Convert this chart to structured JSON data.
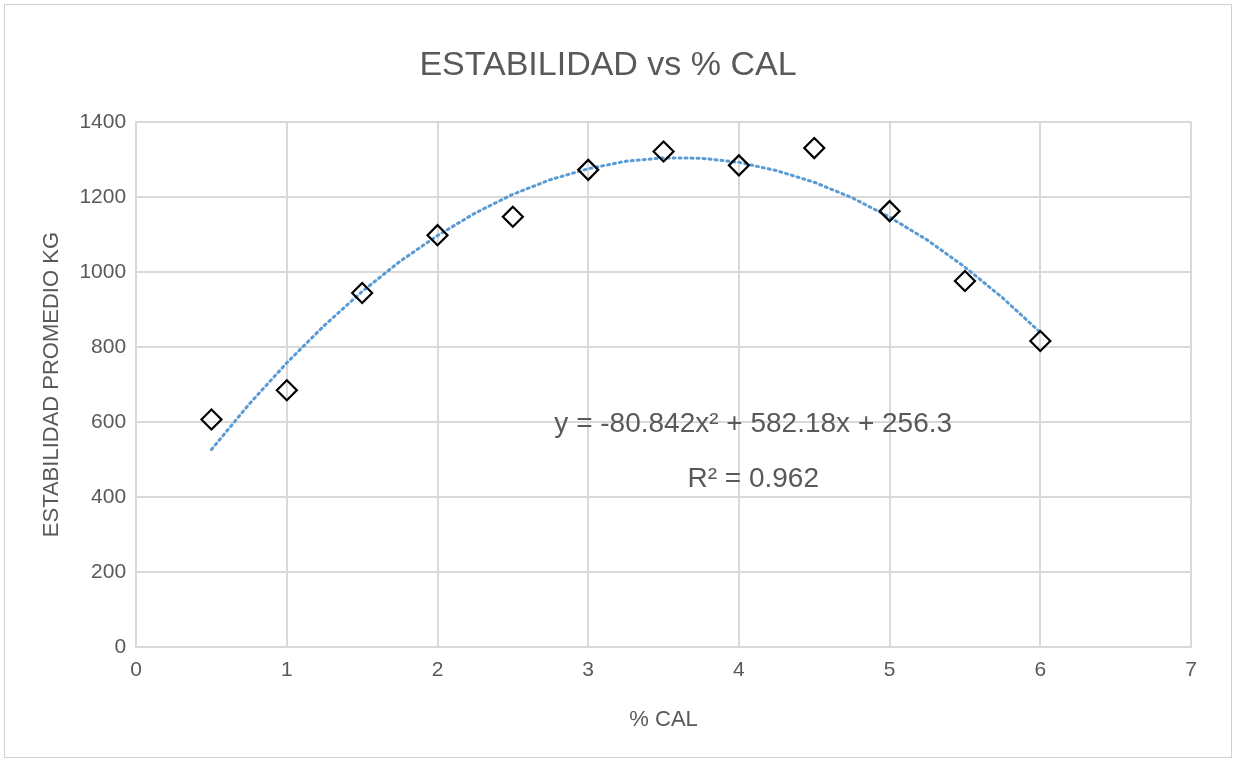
{
  "chart_data": {
    "type": "scatter",
    "title": "ESTABILIDAD vs % CAL",
    "xlabel": "% CAL",
    "ylabel": "ESTABILIDAD PROMEDIO KG",
    "xlim": [
      0,
      7
    ],
    "xticks": [
      0,
      1,
      2,
      3,
      4,
      5,
      6,
      7
    ],
    "ylim": [
      0,
      1400
    ],
    "yticks": [
      0,
      200,
      400,
      600,
      800,
      1000,
      1200,
      1400
    ],
    "grid": true,
    "legend": false,
    "annotations": [
      "y = -80.842x² + 582.18x + 256.3",
      "R² = 0.962"
    ],
    "series": [
      {
        "type": "scatter",
        "color": "#000000",
        "marker": "diamond",
        "x": [
          0.5,
          1,
          1.5,
          2,
          2.5,
          3,
          3.5,
          4,
          4.5,
          5,
          5.5,
          6
        ],
        "values": [
          607,
          685,
          944,
          1098,
          1147,
          1272,
          1321,
          1284,
          1330,
          1162,
          976,
          816
        ]
      },
      {
        "type": "line",
        "color": "#5b9bd5",
        "line_style": "dotted",
        "marker": "none",
        "x": [
          0.5,
          0.75,
          1,
          1.25,
          1.5,
          1.75,
          2,
          2.25,
          2.5,
          2.75,
          3,
          3.25,
          3.5,
          3.75,
          4,
          4.25,
          4.5,
          4.75,
          5,
          5.25,
          5.5,
          5.75,
          6
        ],
        "values": [
          527,
          648,
          758,
          858,
          948,
          1028,
          1097,
          1157,
          1207,
          1246,
          1275,
          1295,
          1304,
          1303,
          1292,
          1270,
          1239,
          1198,
          1146,
          1085,
          1013,
          931,
          839
        ]
      }
    ]
  }
}
